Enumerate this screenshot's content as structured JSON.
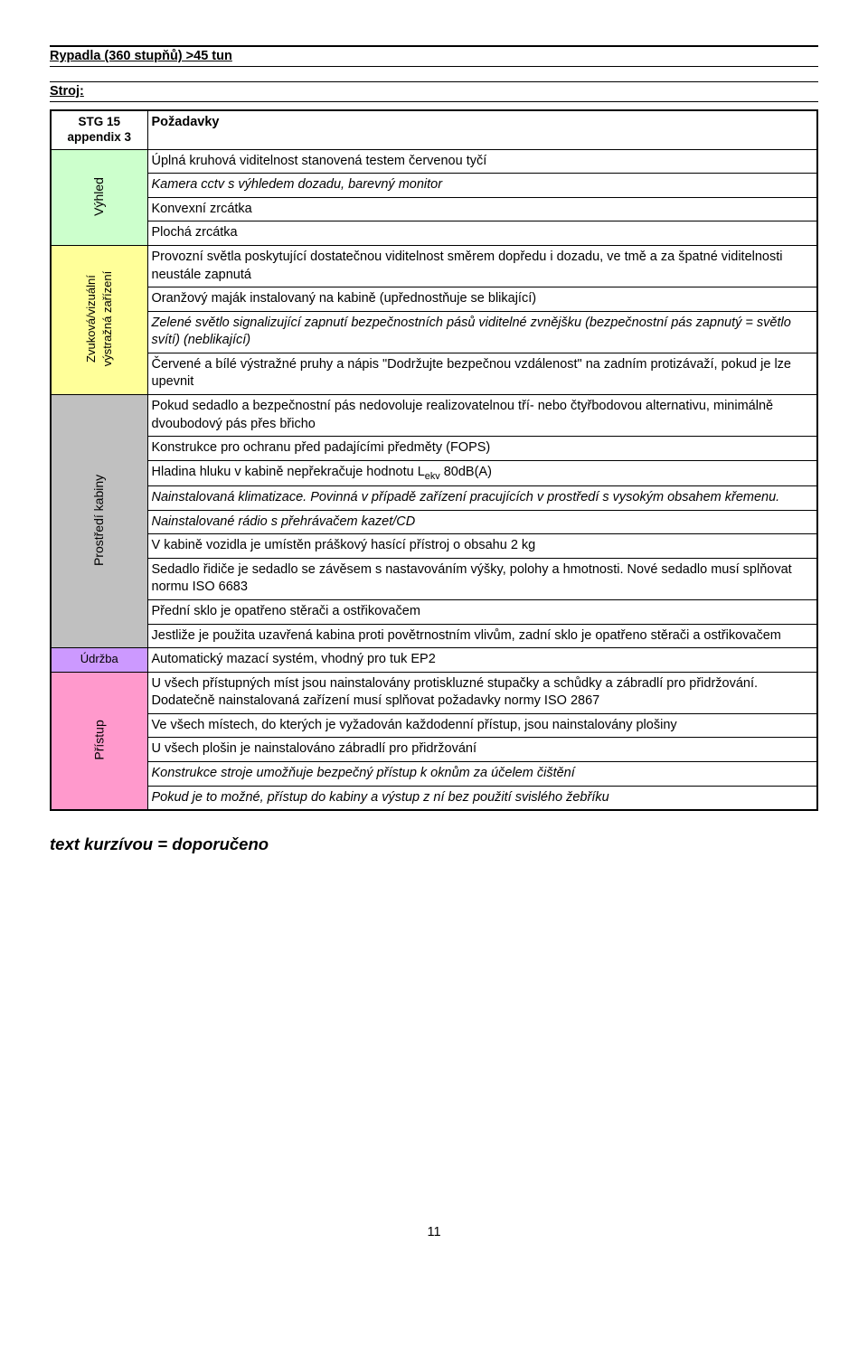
{
  "colors": {
    "green": "#ccffcc",
    "yellow": "#ffff99",
    "gray": "#c0c0c0",
    "pink": "#ff99cc",
    "violet": "#cc99ff",
    "border": "#000000",
    "bg": "#ffffff"
  },
  "title": "Rypadla (360 stupňů) >45 tun",
  "stroj_label": "Stroj:",
  "header": {
    "stg": "STG 15 appendix 3",
    "pozadavky": "Požadavky"
  },
  "sections": {
    "vyhled": {
      "label": "Výhled",
      "rows": [
        {
          "text": "Úplná kruhová viditelnost stanovená testem červenou tyčí",
          "italic": false
        },
        {
          "text": "Kamera cctv s výhledem dozadu, barevný monitor",
          "italic": true
        },
        {
          "text": "Konvexní zrcátka",
          "italic": false
        },
        {
          "text": "Plochá zrcátka",
          "italic": false
        }
      ]
    },
    "zvuk": {
      "label": "Zvuková/vizuální výstražná zařízení",
      "rows": [
        {
          "text": "Provozní světla poskytující dostatečnou viditelnost směrem dopředu i dozadu, ve tmě a za špatné viditelnosti neustále zapnutá",
          "italic": false
        },
        {
          "text": "Oranžový maják instalovaný na kabině (upřednostňuje se blikající)",
          "italic": false
        },
        {
          "text": "Zelené světlo signalizující zapnutí bezpečnostních pásů viditelné zvnějšku (bezpečnostní pás zapnutý = světlo svítí) (neblikající)",
          "italic": true
        },
        {
          "text": "Červené a bílé výstražné pruhy a nápis \"Dodržujte bezpečnou vzdálenost\" na zadním protizávaží, pokud je lze upevnit",
          "italic": false
        }
      ]
    },
    "kabina": {
      "label": "Prostředí kabiny",
      "rows": [
        {
          "text": "Pokud sedadlo a bezpečnostní pás nedovoluje realizovatelnou tří- nebo čtyřbodovou alternativu, minimálně dvoubodový pás přes břicho",
          "italic": false
        },
        {
          "text": "Konstrukce pro ochranu před padajícími předměty (FOPS)",
          "italic": false
        },
        {
          "html": "Hladina hluku v kabině nepřekračuje hodnotu L<sub>ekv</sub> 80dB(A)",
          "italic": false
        },
        {
          "text": "Nainstalovaná klimatizace. Povinná v případě zařízení pracujících v prostředí s vysokým obsahem křemenu.",
          "italic": true
        },
        {
          "text": "Nainstalované rádio s přehrávačem kazet/CD",
          "italic": true
        },
        {
          "text": "V kabině vozidla je umístěn práškový hasící přístroj o obsahu 2 kg",
          "italic": false
        },
        {
          "text": "Sedadlo řidiče je sedadlo se závěsem s nastavováním výšky, polohy a hmotnosti. Nové sedadlo musí splňovat normu ISO 6683",
          "italic": false
        },
        {
          "text": "Přední sklo je opatřeno stěrači a ostřikovačem",
          "italic": false
        },
        {
          "text": "Jestliže je použita uzavřená kabina proti povětrnostním vlivům, zadní sklo je opatřeno stěrači a ostřikovačem",
          "italic": false
        }
      ]
    },
    "udrzba": {
      "label": "Údržba",
      "rows": [
        {
          "text": "Automatický mazací systém, vhodný pro tuk EP2",
          "italic": false
        }
      ]
    },
    "pristup": {
      "label": "Přístup",
      "rows": [
        {
          "text": "U všech přístupných míst jsou nainstalovány protiskluzné stupačky a schůdky a zábradlí pro přidržování. Dodatečně nainstalovaná zařízení musí splňovat požadavky normy ISO 2867",
          "italic": false
        },
        {
          "text": "Ve všech místech, do kterých je vyžadován každodenní přístup, jsou nainstalovány plošiny",
          "italic": false
        },
        {
          "text": "U všech plošin je nainstalováno zábradlí pro přidržování",
          "italic": false
        },
        {
          "text": "Konstrukce stroje umožňuje bezpečný přístup k oknům za účelem čištění",
          "italic": true
        },
        {
          "text": "Pokud je to možné, přístup do kabiny a výstup z ní bez použití svislého žebříku",
          "italic": true
        }
      ]
    }
  },
  "footer_note": "text kurzívou = doporučeno",
  "page_number": "11"
}
